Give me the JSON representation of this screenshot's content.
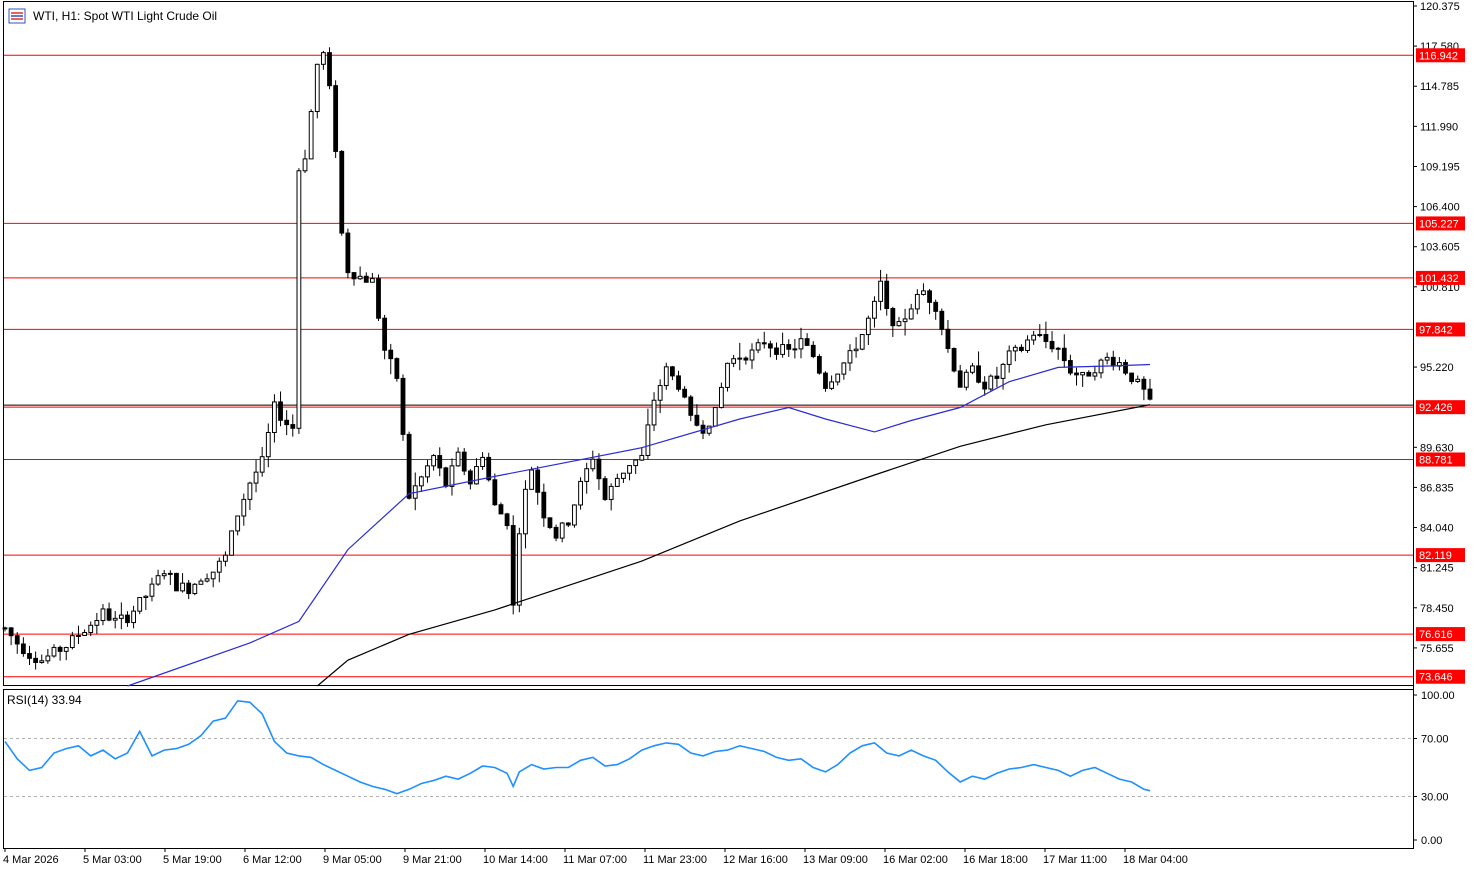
{
  "header": {
    "title": "WTI, H1:  Spot WTI Light Crude Oil"
  },
  "colors": {
    "level_line": "#ff0000",
    "ma_fast": "#2b2bd6",
    "ma_slow": "#000000",
    "rsi_line": "#1e90ff",
    "candle": "#000000",
    "grid_dash": "#b0b0b0"
  },
  "chart_data": [
    {
      "type": "candlestick",
      "title": "WTI, H1:  Spot WTI Light Crude Oil",
      "ylim": [
        73.0,
        120.375
      ],
      "y_ticks": [
        "120.375",
        "117.580",
        "114.785",
        "111.990",
        "109.195",
        "106.400",
        "103.605",
        "100.810",
        "95.220",
        "89.630",
        "86.835",
        "84.040",
        "81.245",
        "78.450",
        "75.655"
      ],
      "x_ticks": [
        "4 Mar 2026",
        "5 Mar 03:00",
        "5 Mar 19:00",
        "6 Mar 12:00",
        "9 Mar 05:00",
        "9 Mar 21:00",
        "10 Mar 14:00",
        "11 Mar 07:00",
        "11 Mar 23:00",
        "12 Mar 16:00",
        "13 Mar 09:00",
        "16 Mar 02:00",
        "16 Mar 18:00",
        "17 Mar 11:00",
        "18 Mar 04:00"
      ],
      "horizontal_levels": [
        116.942,
        105.227,
        101.432,
        97.842,
        92.426,
        88.781,
        82.119,
        76.616,
        73.646
      ],
      "level_labels": [
        "116.942",
        "105.227",
        "101.432",
        "97.842",
        "92.426",
        "88.781",
        "82.119",
        "76.616",
        "73.646"
      ],
      "current_price": 92.426,
      "close_path": [
        [
          0,
          77
        ],
        [
          2,
          76
        ],
        [
          4,
          75.2
        ],
        [
          6,
          74.8
        ],
        [
          8,
          75.3
        ],
        [
          10,
          75.8
        ],
        [
          12,
          76.6
        ],
        [
          14,
          77.3
        ],
        [
          16,
          78.1
        ],
        [
          18,
          77.5
        ],
        [
          20,
          77.8
        ],
        [
          22,
          78.8
        ],
        [
          24,
          79.8
        ],
        [
          26,
          81.1
        ],
        [
          28,
          80
        ],
        [
          30,
          79.8
        ],
        [
          32,
          80.6
        ],
        [
          34,
          81
        ],
        [
          36,
          82
        ],
        [
          38,
          85
        ],
        [
          40,
          87.2
        ],
        [
          42,
          88.6
        ],
        [
          44,
          92.4
        ],
        [
          46,
          91.3
        ],
        [
          47,
          91
        ],
        [
          48,
          109
        ],
        [
          49,
          110
        ],
        [
          50,
          113
        ],
        [
          51,
          116.3
        ],
        [
          52,
          117
        ],
        [
          53,
          114.5
        ],
        [
          54,
          110.5
        ],
        [
          55,
          104.5
        ],
        [
          56,
          102
        ],
        [
          58,
          101.5
        ],
        [
          60,
          101.2
        ],
        [
          62,
          96.4
        ],
        [
          64,
          94.5
        ],
        [
          66,
          86.2
        ],
        [
          68,
          87.5
        ],
        [
          70,
          89
        ],
        [
          72,
          87
        ],
        [
          74,
          89
        ],
        [
          76,
          87.2
        ],
        [
          78,
          89.2
        ],
        [
          80,
          85.5
        ],
        [
          82,
          84.5
        ],
        [
          83,
          78.5
        ],
        [
          84,
          84
        ],
        [
          85,
          86.5
        ],
        [
          86,
          88.2
        ],
        [
          88,
          85
        ],
        [
          90,
          83.5
        ],
        [
          92,
          84.5
        ],
        [
          94,
          87
        ],
        [
          96,
          89
        ],
        [
          98,
          86
        ],
        [
          100,
          87.5
        ],
        [
          102,
          88.5
        ],
        [
          104,
          88.9
        ],
        [
          106,
          93
        ],
        [
          108,
          95
        ],
        [
          110,
          94
        ],
        [
          112,
          91.5
        ],
        [
          114,
          91
        ],
        [
          116,
          92
        ],
        [
          118,
          95.5
        ],
        [
          120,
          96
        ],
        [
          122,
          96.2
        ],
        [
          124,
          97
        ],
        [
          126,
          96.5
        ],
        [
          128,
          96.3
        ],
        [
          130,
          97
        ],
        [
          132,
          96
        ],
        [
          134,
          94
        ],
        [
          136,
          95
        ],
        [
          138,
          96
        ],
        [
          140,
          97.5
        ],
        [
          142,
          99.5
        ],
        [
          143,
          101
        ],
        [
          144,
          99
        ],
        [
          146,
          98
        ],
        [
          148,
          99.5
        ],
        [
          150,
          100.5
        ],
        [
          152,
          99.5
        ],
        [
          154,
          96.5
        ],
        [
          156,
          94
        ],
        [
          158,
          95
        ],
        [
          160,
          94
        ],
        [
          162,
          94.5
        ],
        [
          164,
          96
        ],
        [
          166,
          96.5
        ],
        [
          168,
          97.6
        ],
        [
          170,
          97
        ],
        [
          172,
          96.5
        ],
        [
          174,
          95
        ],
        [
          176,
          94.5
        ],
        [
          178,
          95.2
        ],
        [
          180,
          95.8
        ],
        [
          182,
          95.5
        ],
        [
          184,
          94.5
        ],
        [
          186,
          93.5
        ],
        [
          187,
          92.6
        ]
      ],
      "ma_fast_path": [
        [
          20,
          73
        ],
        [
          40,
          76
        ],
        [
          48,
          77.5
        ],
        [
          56,
          82.5
        ],
        [
          66,
          86.4
        ],
        [
          80,
          87.6
        ],
        [
          104,
          89.6
        ],
        [
          120,
          91.6
        ],
        [
          128,
          92.4
        ],
        [
          134,
          91.6
        ],
        [
          142,
          90.7
        ],
        [
          148,
          91.5
        ],
        [
          156,
          92.4
        ],
        [
          164,
          94.2
        ],
        [
          172,
          95.2
        ],
        [
          181,
          95.3
        ],
        [
          187,
          95.4
        ]
      ],
      "ma_slow_path": [
        [
          51,
          73
        ],
        [
          56,
          74.8
        ],
        [
          66,
          76.6
        ],
        [
          80,
          78.3
        ],
        [
          104,
          81.7
        ],
        [
          120,
          84.5
        ],
        [
          142,
          87.7
        ],
        [
          156,
          89.7
        ],
        [
          170,
          91.2
        ],
        [
          187,
          92.6
        ]
      ]
    },
    {
      "type": "line",
      "title": "RSI(14) 33.94",
      "indicator_name": "RSI(14)",
      "indicator_value": "33.94",
      "ylim": [
        0,
        100
      ],
      "y_ticks": [
        "100.00",
        "70.00",
        "30.00",
        "0.00"
      ],
      "reference_levels": [
        70,
        30
      ],
      "path": [
        [
          0,
          68
        ],
        [
          2,
          56
        ],
        [
          4,
          48
        ],
        [
          6,
          50
        ],
        [
          8,
          60
        ],
        [
          10,
          63
        ],
        [
          12,
          65
        ],
        [
          14,
          58
        ],
        [
          16,
          62
        ],
        [
          18,
          56
        ],
        [
          20,
          60
        ],
        [
          22,
          75
        ],
        [
          24,
          58
        ],
        [
          26,
          62
        ],
        [
          28,
          63
        ],
        [
          30,
          66
        ],
        [
          32,
          72
        ],
        [
          34,
          82
        ],
        [
          36,
          84
        ],
        [
          38,
          96
        ],
        [
          40,
          95
        ],
        [
          42,
          87
        ],
        [
          44,
          68
        ],
        [
          46,
          60
        ],
        [
          48,
          58
        ],
        [
          50,
          57
        ],
        [
          52,
          52
        ],
        [
          54,
          48
        ],
        [
          56,
          44
        ],
        [
          58,
          40
        ],
        [
          60,
          37
        ],
        [
          62,
          35
        ],
        [
          64,
          32
        ],
        [
          66,
          35
        ],
        [
          68,
          39
        ],
        [
          70,
          41
        ],
        [
          72,
          44
        ],
        [
          74,
          42
        ],
        [
          76,
          46
        ],
        [
          78,
          51
        ],
        [
          80,
          50
        ],
        [
          82,
          46
        ],
        [
          83,
          37
        ],
        [
          84,
          47
        ],
        [
          86,
          52
        ],
        [
          88,
          49
        ],
        [
          90,
          50
        ],
        [
          92,
          50
        ],
        [
          94,
          55
        ],
        [
          96,
          57
        ],
        [
          98,
          51
        ],
        [
          100,
          52
        ],
        [
          102,
          56
        ],
        [
          104,
          62
        ],
        [
          106,
          65
        ],
        [
          108,
          67
        ],
        [
          110,
          66
        ],
        [
          112,
          60
        ],
        [
          114,
          58
        ],
        [
          116,
          61
        ],
        [
          118,
          62
        ],
        [
          120,
          65
        ],
        [
          122,
          63
        ],
        [
          124,
          61
        ],
        [
          126,
          57
        ],
        [
          128,
          55
        ],
        [
          130,
          56
        ],
        [
          132,
          50
        ],
        [
          134,
          47
        ],
        [
          136,
          52
        ],
        [
          138,
          60
        ],
        [
          140,
          65
        ],
        [
          142,
          67
        ],
        [
          144,
          60
        ],
        [
          146,
          58
        ],
        [
          148,
          62
        ],
        [
          150,
          58
        ],
        [
          152,
          55
        ],
        [
          154,
          47
        ],
        [
          156,
          40
        ],
        [
          158,
          44
        ],
        [
          160,
          42
        ],
        [
          162,
          46
        ],
        [
          164,
          49
        ],
        [
          166,
          50
        ],
        [
          168,
          52
        ],
        [
          170,
          50
        ],
        [
          172,
          48
        ],
        [
          174,
          44
        ],
        [
          176,
          48
        ],
        [
          178,
          50
        ],
        [
          180,
          46
        ],
        [
          182,
          42
        ],
        [
          184,
          40
        ],
        [
          186,
          35
        ],
        [
          187,
          34
        ]
      ]
    }
  ]
}
